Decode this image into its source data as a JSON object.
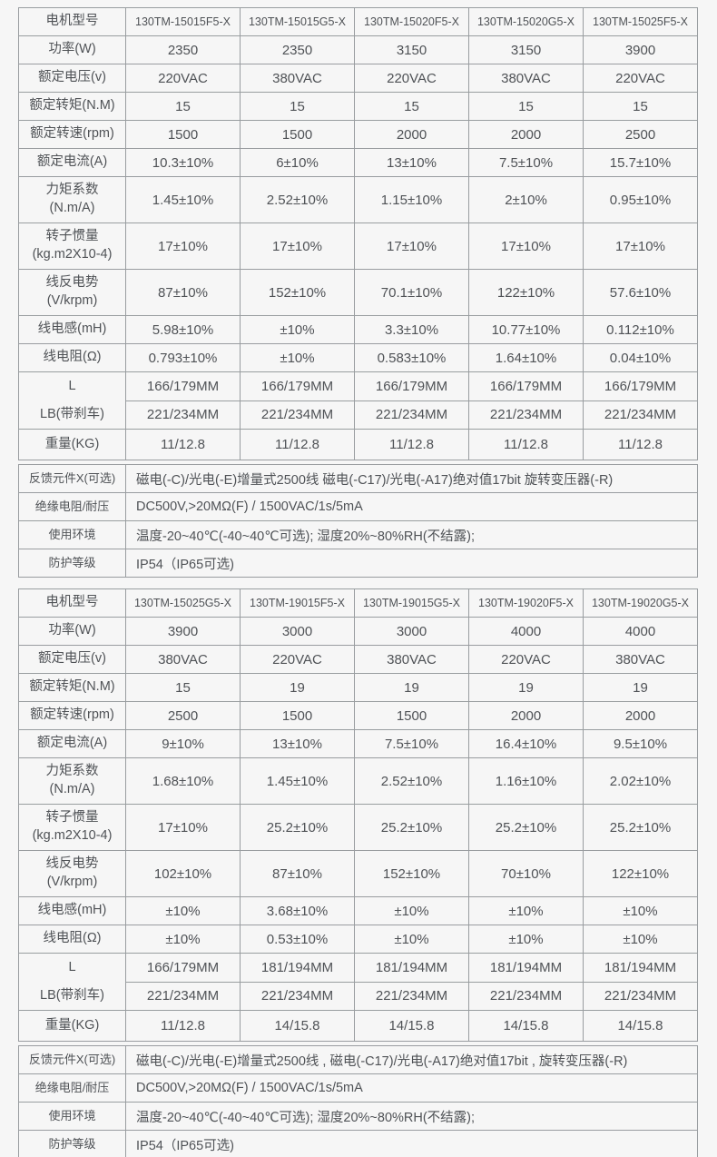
{
  "meta": {
    "background": "#f6f6f6",
    "border_color": "#999da0",
    "text_color": "#4f5256"
  },
  "tables": [
    {
      "name": "spec-table-1",
      "rows": [
        {
          "label": "电机型号",
          "header": true,
          "values": [
            "130TM-15015F5-X",
            "130TM-15015G5-X",
            "130TM-15020F5-X",
            "130TM-15020G5-X",
            "130TM-15025F5-X"
          ]
        },
        {
          "label": "功率(W)",
          "values": [
            "2350",
            "2350",
            "3150",
            "3150",
            "3900"
          ]
        },
        {
          "label": "额定电压(v)",
          "values": [
            "220VAC",
            "380VAC",
            "220VAC",
            "380VAC",
            "220VAC"
          ]
        },
        {
          "label": "额定转矩(N.M)",
          "values": [
            "15",
            "15",
            "15",
            "15",
            "15"
          ]
        },
        {
          "label": "额定转速(rpm)",
          "values": [
            "1500",
            "1500",
            "2000",
            "2000",
            "2500"
          ]
        },
        {
          "label": "额定电流(A)",
          "values": [
            "10.3±10%",
            "6±10%",
            "13±10%",
            "7.5±10%",
            "15.7±10%"
          ]
        },
        {
          "label": "力矩系数\n(N.m/A)",
          "tall": true,
          "values": [
            "1.45±10%",
            "2.52±10%",
            "1.15±10%",
            "2±10%",
            "0.95±10%"
          ]
        },
        {
          "label": "转子惯量\n(kg.m2X10-4)",
          "tall": true,
          "values": [
            "17±10%",
            "17±10%",
            "17±10%",
            "17±10%",
            "17±10%"
          ]
        },
        {
          "label": "线反电势\n(V/krpm)",
          "tall": true,
          "values": [
            "87±10%",
            "152±10%",
            "70.1±10%",
            "122±10%",
            "57.6±10%"
          ]
        },
        {
          "label": "线电感(mH)",
          "values": [
            "5.98±10%",
            "±10%",
            "3.3±10%",
            "10.77±10%",
            "0.112±10%"
          ]
        },
        {
          "label": "线电阻(Ω)",
          "values": [
            "0.793±10%",
            "±10%",
            "0.583±10%",
            "1.64±10%",
            "0.04±10%"
          ]
        },
        {
          "label": "L",
          "label2": "LB(带刹车)",
          "values": [
            "166/179MM",
            "166/179MM",
            "166/179MM",
            "166/179MM",
            "166/179MM"
          ],
          "values2": [
            "221/234MM",
            "221/234MM",
            "221/234MM",
            "221/234MM",
            "221/234MM"
          ]
        },
        {
          "label": "重量(KG)",
          "weight": true,
          "values": [
            "11/12.8",
            "11/12.8",
            "11/12.8",
            "11/12.8",
            "11/12.8"
          ]
        }
      ],
      "footer": [
        {
          "label": "反馈元件X(可选)",
          "value": "磁电(-C)/光电(-E)增量式2500线  磁电(-C17)/光电(-A17)绝对值17bit  旋转变压器(-R)"
        },
        {
          "label": "绝缘电阻/耐压",
          "value": "DC500V,>20MΩ(F) / 1500VAC/1s/5mA"
        },
        {
          "label": "使用环境",
          "value": "温度-20~40℃(-40~40℃可选); 湿度20%~80%RH(不结露);"
        },
        {
          "label": "防护等级",
          "value": "IP54（IP65可选)"
        }
      ]
    },
    {
      "name": "spec-table-2",
      "rows": [
        {
          "label": "电机型号",
          "header": true,
          "values": [
            "130TM-15025G5-X",
            "130TM-19015F5-X",
            "130TM-19015G5-X",
            "130TM-19020F5-X",
            "130TM-19020G5-X"
          ]
        },
        {
          "label": "功率(W)",
          "values": [
            "3900",
            "3000",
            "3000",
            "4000",
            "4000"
          ]
        },
        {
          "label": "额定电压(v)",
          "values": [
            "380VAC",
            "220VAC",
            "380VAC",
            "220VAC",
            "380VAC"
          ]
        },
        {
          "label": "额定转矩(N.M)",
          "values": [
            "15",
            "19",
            "19",
            "19",
            "19"
          ]
        },
        {
          "label": "额定转速(rpm)",
          "values": [
            "2500",
            "1500",
            "1500",
            "2000",
            "2000"
          ]
        },
        {
          "label": "额定电流(A)",
          "values": [
            "9±10%",
            "13±10%",
            "7.5±10%",
            "16.4±10%",
            "9.5±10%"
          ]
        },
        {
          "label": "力矩系数\n(N.m/A)",
          "tall": true,
          "values": [
            "1.68±10%",
            "1.45±10%",
            "2.52±10%",
            "1.16±10%",
            "2.02±10%"
          ]
        },
        {
          "label": "转子惯量\n(kg.m2X10-4)",
          "tall": true,
          "values": [
            "17±10%",
            "25.2±10%",
            "25.2±10%",
            "25.2±10%",
            "25.2±10%"
          ]
        },
        {
          "label": "线反电势\n(V/krpm)",
          "tall": true,
          "values": [
            "102±10%",
            "87±10%",
            "152±10%",
            "70±10%",
            "122±10%"
          ]
        },
        {
          "label": "线电感(mH)",
          "values": [
            "±10%",
            "3.68±10%",
            "±10%",
            "±10%",
            "±10%"
          ]
        },
        {
          "label": "线电阻(Ω)",
          "values": [
            "±10%",
            "0.53±10%",
            "±10%",
            "±10%",
            "±10%"
          ]
        },
        {
          "label": "L",
          "label2": "LB(带刹车)",
          "values": [
            "166/179MM",
            "181/194MM",
            "181/194MM",
            "181/194MM",
            "181/194MM"
          ],
          "values2": [
            "221/234MM",
            "221/234MM",
            "221/234MM",
            "221/234MM",
            "221/234MM"
          ]
        },
        {
          "label": "重量(KG)",
          "weight": true,
          "values": [
            "11/12.8",
            "14/15.8",
            "14/15.8",
            "14/15.8",
            "14/15.8"
          ]
        }
      ],
      "footer": [
        {
          "label": "反馈元件X(可选)",
          "value": "磁电(-C)/光电(-E)增量式2500线 , 磁电(-C17)/光电(-A17)绝对值17bit , 旋转变压器(-R)"
        },
        {
          "label": "绝缘电阻/耐压",
          "value": "DC500V,>20MΩ(F) / 1500VAC/1s/5mA"
        },
        {
          "label": "使用环境",
          "value": "温度-20~40℃(-40~40℃可选); 湿度20%~80%RH(不结露);"
        },
        {
          "label": "防护等级",
          "value": "IP54（IP65可选)"
        }
      ]
    }
  ]
}
